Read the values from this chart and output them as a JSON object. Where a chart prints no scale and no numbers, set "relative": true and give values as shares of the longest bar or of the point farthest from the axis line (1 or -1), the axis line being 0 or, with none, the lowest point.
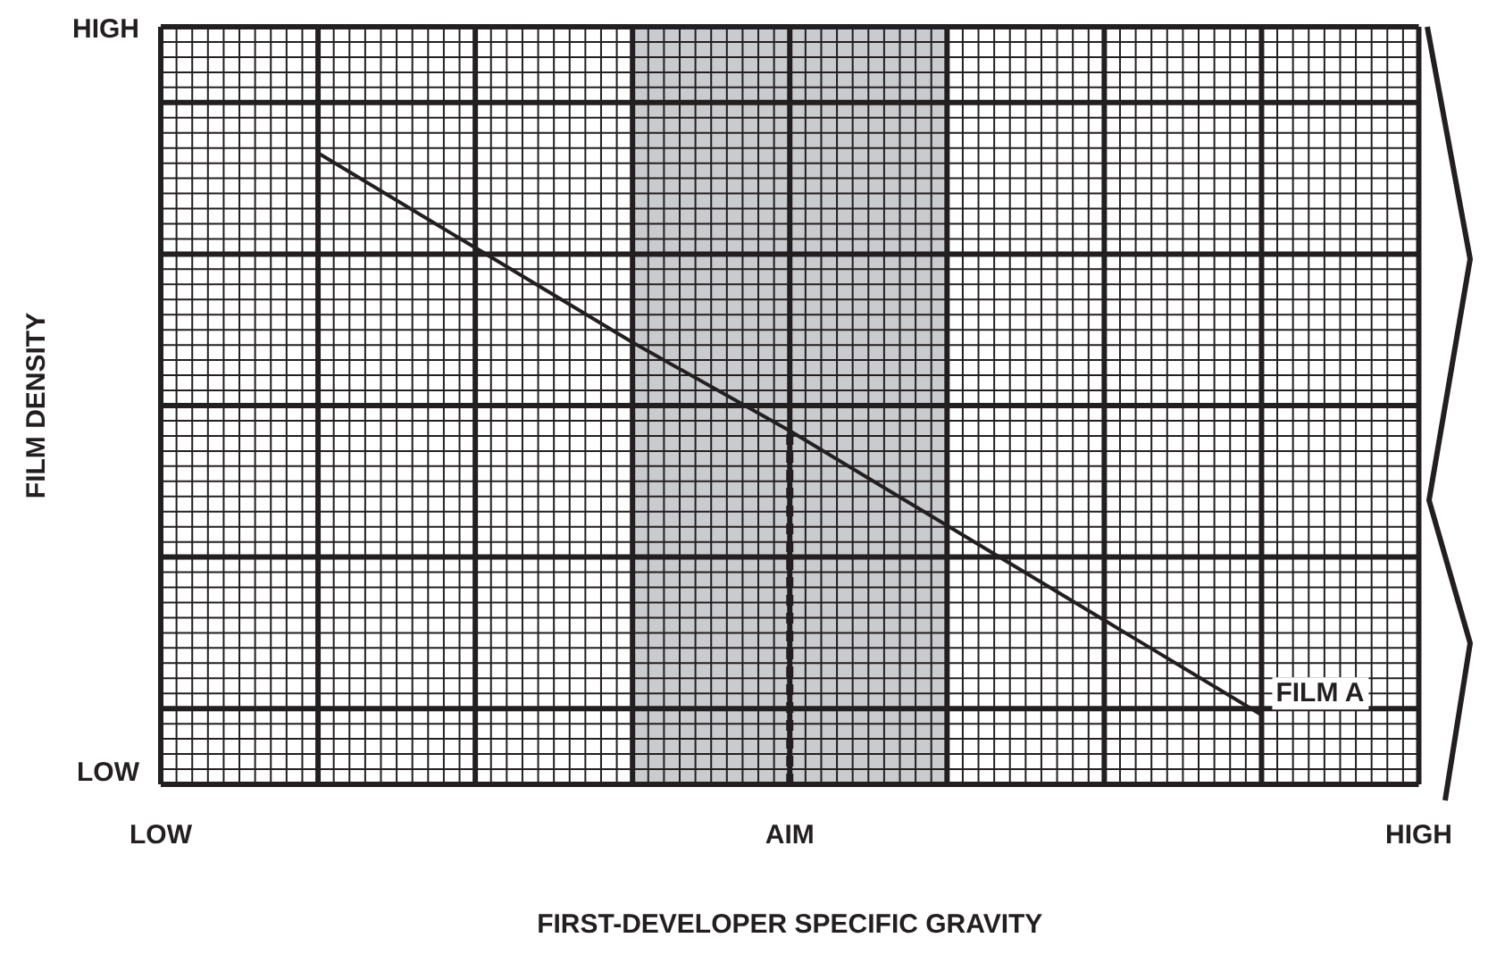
{
  "chart_data": {
    "type": "line",
    "xlabel": "FIRST-DEVELOPER SPECIFIC GRAVITY",
    "ylabel": "FILM DENSITY",
    "categories": [
      "LOW",
      null,
      null,
      null,
      "AIM",
      null,
      null,
      null,
      "HIGH"
    ],
    "relative": true,
    "series": [
      {
        "name": "FILM A",
        "color": "#231f20",
        "values": [
          null,
          1,
          0.85,
          0.7,
          0.56,
          0.41,
          0.26,
          0.11,
          null
        ]
      },
      {
        "color": "#231f20",
        "x": [
          "AIM",
          "AIM"
        ],
        "values": [
          0,
          0.56
        ],
        "line_style": "dashed"
      }
    ],
    "annotations": [
      "LOW",
      "HIGH"
    ],
    "grid": true,
    "legend": false,
    "marker": "none",
    "line_style": "solid"
  }
}
